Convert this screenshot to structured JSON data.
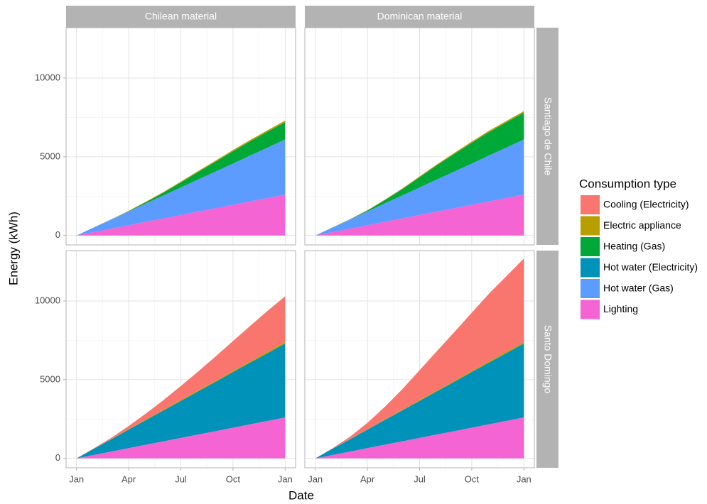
{
  "x_label": "Date",
  "y_label": "Energy (kWh)",
  "facets": {
    "columns": [
      "Chilean material",
      "Dominican material"
    ],
    "rows": [
      "Santiago de Chile",
      "Santo Domingo"
    ]
  },
  "legend": {
    "title": "Consumption type",
    "items": [
      {
        "name": "Cooling (Electricity)",
        "color": "#F8766D"
      },
      {
        "name": "Electric appliance",
        "color": "#B79F00"
      },
      {
        "name": "Heating (Gas)",
        "color": "#00A838"
      },
      {
        "name": "Hot water (Electricity)",
        "color": "#0092B8"
      },
      {
        "name": "Hot water (Gas)",
        "color": "#5C9BFF"
      },
      {
        "name": "Lighting",
        "color": "#F564D3"
      }
    ]
  },
  "chart_data": [
    {
      "type": "area",
      "stacked": true,
      "column": 0,
      "row": 0,
      "x": [
        0,
        1,
        2,
        3,
        4,
        5,
        6,
        7,
        8,
        9,
        10,
        11,
        12
      ],
      "xlim": [
        -0.6,
        12.6
      ],
      "xticks": [
        {
          "value": 0,
          "label": "Jan"
        },
        {
          "value": 3,
          "label": "Apr"
        },
        {
          "value": 6,
          "label": "Jul"
        },
        {
          "value": 9,
          "label": "Oct"
        },
        {
          "value": 12,
          "label": "Jan"
        }
      ],
      "ylim": [
        -600,
        13200
      ],
      "yticks": [
        0,
        5000,
        10000
      ],
      "grid": true,
      "series": [
        {
          "name": "Electric appliance",
          "color": "#B79F00",
          "values": [
            0,
            8,
            17,
            25,
            33,
            42,
            50,
            58,
            67,
            75,
            83,
            92,
            100
          ]
        },
        {
          "name": "Heating (Gas)",
          "color": "#00A838",
          "values": [
            0,
            0,
            0,
            20,
            80,
            180,
            320,
            480,
            630,
            780,
            900,
            1010,
            1100
          ]
        },
        {
          "name": "Hot water (Gas)",
          "color": "#5C9BFF",
          "values": [
            0,
            290,
            580,
            870,
            1170,
            1460,
            1750,
            2040,
            2330,
            2620,
            2920,
            3210,
            3500
          ]
        },
        {
          "name": "Lighting",
          "color": "#F564D3",
          "values": [
            0,
            220,
            430,
            650,
            870,
            1080,
            1300,
            1520,
            1730,
            1950,
            2170,
            2380,
            2600
          ]
        }
      ]
    },
    {
      "type": "area",
      "stacked": true,
      "column": 1,
      "row": 0,
      "x": [
        0,
        1,
        2,
        3,
        4,
        5,
        6,
        7,
        8,
        9,
        10,
        11,
        12
      ],
      "xlim": [
        -0.6,
        12.6
      ],
      "xticks": [
        {
          "value": 0,
          "label": "Jan"
        },
        {
          "value": 3,
          "label": "Apr"
        },
        {
          "value": 6,
          "label": "Jul"
        },
        {
          "value": 9,
          "label": "Oct"
        },
        {
          "value": 12,
          "label": "Jan"
        }
      ],
      "ylim": [
        -600,
        13200
      ],
      "yticks": [
        0,
        5000,
        10000
      ],
      "grid": true,
      "series": [
        {
          "name": "Electric appliance",
          "color": "#B79F00",
          "values": [
            0,
            8,
            17,
            25,
            33,
            42,
            50,
            58,
            67,
            75,
            83,
            92,
            100
          ]
        },
        {
          "name": "Heating (Gas)",
          "color": "#00A838",
          "values": [
            0,
            0,
            10,
            60,
            200,
            400,
            650,
            900,
            1120,
            1320,
            1480,
            1600,
            1700
          ]
        },
        {
          "name": "Hot water (Gas)",
          "color": "#5C9BFF",
          "values": [
            0,
            290,
            580,
            870,
            1170,
            1460,
            1750,
            2040,
            2330,
            2620,
            2920,
            3210,
            3500
          ]
        },
        {
          "name": "Lighting",
          "color": "#F564D3",
          "values": [
            0,
            220,
            430,
            650,
            870,
            1080,
            1300,
            1520,
            1730,
            1950,
            2170,
            2380,
            2600
          ]
        }
      ]
    },
    {
      "type": "area",
      "stacked": true,
      "column": 0,
      "row": 1,
      "x": [
        0,
        1,
        2,
        3,
        4,
        5,
        6,
        7,
        8,
        9,
        10,
        11,
        12
      ],
      "xlim": [
        -0.6,
        12.6
      ],
      "xticks": [
        {
          "value": 0,
          "label": "Jan"
        },
        {
          "value": 3,
          "label": "Apr"
        },
        {
          "value": 6,
          "label": "Jul"
        },
        {
          "value": 9,
          "label": "Oct"
        },
        {
          "value": 12,
          "label": "Jan"
        }
      ],
      "ylim": [
        -600,
        13200
      ],
      "yticks": [
        0,
        5000,
        10000
      ],
      "grid": true,
      "series": [
        {
          "name": "Cooling (Electricity)",
          "color": "#F8766D",
          "values": [
            0,
            20,
            80,
            200,
            380,
            620,
            900,
            1200,
            1550,
            1900,
            2250,
            2600,
            2900
          ]
        },
        {
          "name": "Electric appliance",
          "color": "#B79F00",
          "values": [
            0,
            8,
            17,
            25,
            33,
            42,
            50,
            58,
            67,
            75,
            83,
            92,
            100
          ]
        },
        {
          "name": "Hot water (Electricity)",
          "color": "#0092B8",
          "values": [
            0,
            390,
            780,
            1180,
            1570,
            1960,
            2350,
            2740,
            3130,
            3530,
            3920,
            4310,
            4700
          ]
        },
        {
          "name": "Lighting",
          "color": "#F564D3",
          "values": [
            0,
            220,
            430,
            650,
            870,
            1080,
            1300,
            1520,
            1730,
            1950,
            2170,
            2380,
            2600
          ]
        }
      ]
    },
    {
      "type": "area",
      "stacked": true,
      "column": 1,
      "row": 1,
      "x": [
        0,
        1,
        2,
        3,
        4,
        5,
        6,
        7,
        8,
        9,
        10,
        11,
        12
      ],
      "xlim": [
        -0.6,
        12.6
      ],
      "xticks": [
        {
          "value": 0,
          "label": "Jan"
        },
        {
          "value": 3,
          "label": "Apr"
        },
        {
          "value": 6,
          "label": "Jul"
        },
        {
          "value": 9,
          "label": "Oct"
        },
        {
          "value": 12,
          "label": "Jan"
        }
      ],
      "ylim": [
        -600,
        13200
      ],
      "yticks": [
        0,
        5000,
        10000
      ],
      "grid": true,
      "series": [
        {
          "name": "Cooling (Electricity)",
          "color": "#F8766D",
          "values": [
            0,
            30,
            150,
            400,
            800,
            1300,
            1900,
            2500,
            3100,
            3700,
            4300,
            4800,
            5300
          ]
        },
        {
          "name": "Electric appliance",
          "color": "#B79F00",
          "values": [
            0,
            8,
            17,
            25,
            33,
            42,
            50,
            58,
            67,
            75,
            83,
            92,
            100
          ]
        },
        {
          "name": "Hot water (Electricity)",
          "color": "#0092B8",
          "values": [
            0,
            390,
            780,
            1180,
            1570,
            1960,
            2350,
            2740,
            3130,
            3530,
            3920,
            4310,
            4700
          ]
        },
        {
          "name": "Lighting",
          "color": "#F564D3",
          "values": [
            0,
            220,
            430,
            650,
            870,
            1080,
            1300,
            1520,
            1730,
            1950,
            2170,
            2380,
            2600
          ]
        }
      ]
    }
  ]
}
